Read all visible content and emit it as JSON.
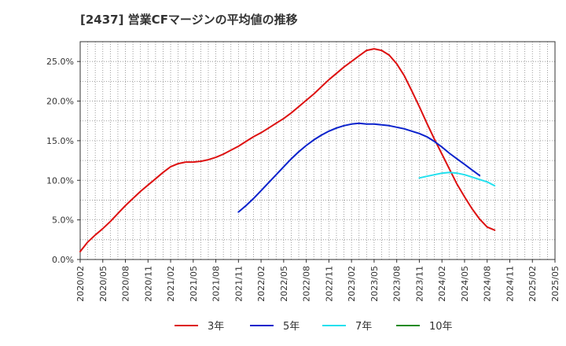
{
  "header": {
    "title": "[2437]  営業CFマージンの平均値の推移"
  },
  "colors": {
    "3y": "#dd1111",
    "5y": "#0a22cc",
    "7y": "#22e0ee",
    "10y": "#228b22",
    "grid": "#888888",
    "axis": "#333333"
  },
  "chart_data": {
    "type": "line",
    "title": "[2437]  営業CFマージンの平均値の推移",
    "xlabel": "",
    "ylabel": "",
    "ylim": [
      0,
      27.5
    ],
    "yticks": [
      0,
      5,
      10,
      15,
      20,
      25
    ],
    "ytick_labels": [
      "0.0%",
      "5.0%",
      "10.0%",
      "15.0%",
      "20.0%",
      "25.0%"
    ],
    "x_range": [
      "2020/02",
      "2025/05"
    ],
    "xtick_labels": [
      "2020/02",
      "2020/05",
      "2020/08",
      "2020/11",
      "2021/02",
      "2021/05",
      "2021/08",
      "2021/11",
      "2022/02",
      "2022/05",
      "2022/08",
      "2022/11",
      "2023/02",
      "2023/05",
      "2023/08",
      "2023/11",
      "2024/02",
      "2024/05",
      "2024/08",
      "2024/11",
      "2025/02",
      "2025/05"
    ],
    "grid": true,
    "legend_position": "bottom",
    "series": [
      {
        "name": "3年",
        "color_key": "3y",
        "x": [
          "2020/02",
          "2020/03",
          "2020/04",
          "2020/05",
          "2020/06",
          "2020/07",
          "2020/08",
          "2020/09",
          "2020/10",
          "2020/11",
          "2020/12",
          "2021/01",
          "2021/02",
          "2021/03",
          "2021/04",
          "2021/05",
          "2021/06",
          "2021/07",
          "2021/08",
          "2021/09",
          "2021/10",
          "2021/11",
          "2021/12",
          "2022/01",
          "2022/02",
          "2022/03",
          "2022/04",
          "2022/05",
          "2022/06",
          "2022/07",
          "2022/08",
          "2022/09",
          "2022/10",
          "2022/11",
          "2022/12",
          "2023/01",
          "2023/02",
          "2023/03",
          "2023/04",
          "2023/05",
          "2023/06",
          "2023/07",
          "2023/08",
          "2023/09",
          "2023/10",
          "2023/11",
          "2023/12",
          "2024/01",
          "2024/02",
          "2024/03",
          "2024/04",
          "2024/05",
          "2024/06",
          "2024/07",
          "2024/08",
          "2024/09",
          "2024/10",
          "2024/11"
        ],
        "values": [
          1.0,
          2.2,
          3.1,
          3.9,
          4.8,
          5.8,
          6.8,
          7.7,
          8.6,
          9.4,
          10.2,
          11.0,
          11.7,
          12.1,
          12.3,
          12.3,
          12.4,
          12.6,
          12.9,
          13.3,
          13.8,
          14.3,
          14.9,
          15.5,
          16.0,
          16.6,
          17.2,
          17.8,
          18.5,
          19.3,
          20.1,
          20.9,
          21.8,
          22.7,
          23.5,
          24.3,
          25.0,
          25.7,
          26.4,
          26.6,
          26.4,
          25.8,
          24.7,
          23.2,
          21.3,
          19.3,
          17.2,
          15.2,
          13.3,
          11.4,
          9.5,
          7.9,
          6.4,
          5.1,
          4.1,
          3.7,
          null,
          null
        ],
        "note": ""
      },
      {
        "name": "5年",
        "color_key": "5y",
        "x": [
          "2021/11",
          "2021/12",
          "2022/01",
          "2022/02",
          "2022/03",
          "2022/04",
          "2022/05",
          "2022/06",
          "2022/07",
          "2022/08",
          "2022/09",
          "2022/10",
          "2022/11",
          "2022/12",
          "2023/01",
          "2023/02",
          "2023/03",
          "2023/04",
          "2023/05",
          "2023/06",
          "2023/07",
          "2023/08",
          "2023/09",
          "2023/10",
          "2023/11",
          "2023/12",
          "2024/01",
          "2024/02",
          "2024/03",
          "2024/04",
          "2024/05",
          "2024/06",
          "2024/07",
          "2024/08",
          "2024/09",
          "2024/10",
          "2024/11"
        ],
        "values": [
          6.0,
          6.8,
          7.7,
          8.7,
          9.7,
          10.7,
          11.7,
          12.7,
          13.6,
          14.4,
          15.1,
          15.7,
          16.2,
          16.6,
          16.9,
          17.1,
          17.2,
          17.1,
          17.1,
          17.0,
          16.9,
          16.7,
          16.5,
          16.2,
          15.9,
          15.5,
          14.9,
          14.2,
          13.4,
          12.7,
          12.0,
          11.3,
          10.6,
          null,
          null,
          null,
          null
        ]
      },
      {
        "name": "7年",
        "color_key": "7y",
        "x": [
          "2023/11",
          "2023/12",
          "2024/01",
          "2024/02",
          "2024/03",
          "2024/04",
          "2024/05",
          "2024/06",
          "2024/07",
          "2024/08",
          "2024/09",
          "2024/10",
          "2024/11"
        ],
        "values": [
          10.3,
          10.5,
          10.7,
          10.9,
          11.0,
          10.9,
          10.7,
          10.4,
          10.1,
          9.8,
          9.3,
          null,
          null
        ]
      },
      {
        "name": "10年",
        "color_key": "10y",
        "x": [],
        "values": []
      }
    ]
  }
}
